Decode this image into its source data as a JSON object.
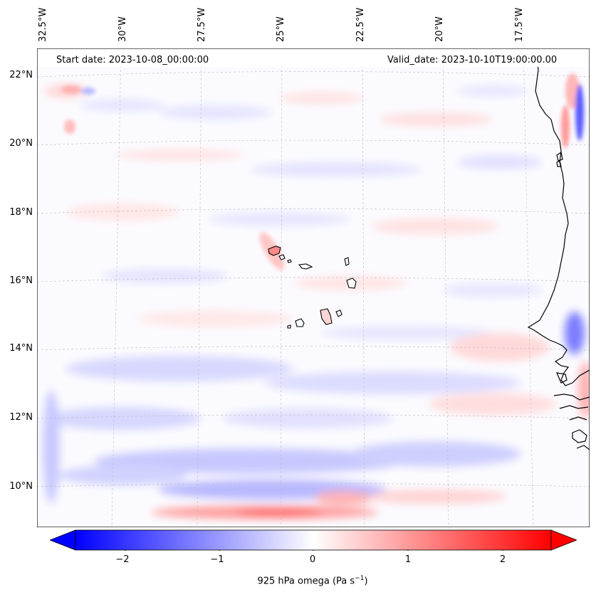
{
  "header": {
    "start_date": "Start date: 2023-10-08_00:00:00",
    "valid_date": "Valid_date: 2023-10-10T19:00:00.00"
  },
  "map": {
    "longitude_labels": [
      "32.5°W",
      "30°W",
      "27.5°W",
      "25°W",
      "22.5°W",
      "20°W",
      "17.5°W"
    ],
    "latitude_labels": [
      "22°N",
      "20°N",
      "18°N",
      "16°N",
      "14°N",
      "12°N",
      "10°N"
    ],
    "field": "925 hPa omega",
    "colormap": "bwr",
    "colors": {
      "negative": "#0000ff",
      "zero": "#ffffff",
      "positive": "#ff0000",
      "coast": "#000000",
      "grid": "#b0b0b0"
    }
  },
  "colorbar": {
    "ticks": [
      "−2",
      "−1",
      "0",
      "1",
      "2"
    ],
    "range": [
      -2.6,
      2.6
    ],
    "label_main": "925 hPa omega (Pa s",
    "label_exp": "−1",
    "label_close": ")",
    "extend": "both"
  }
}
